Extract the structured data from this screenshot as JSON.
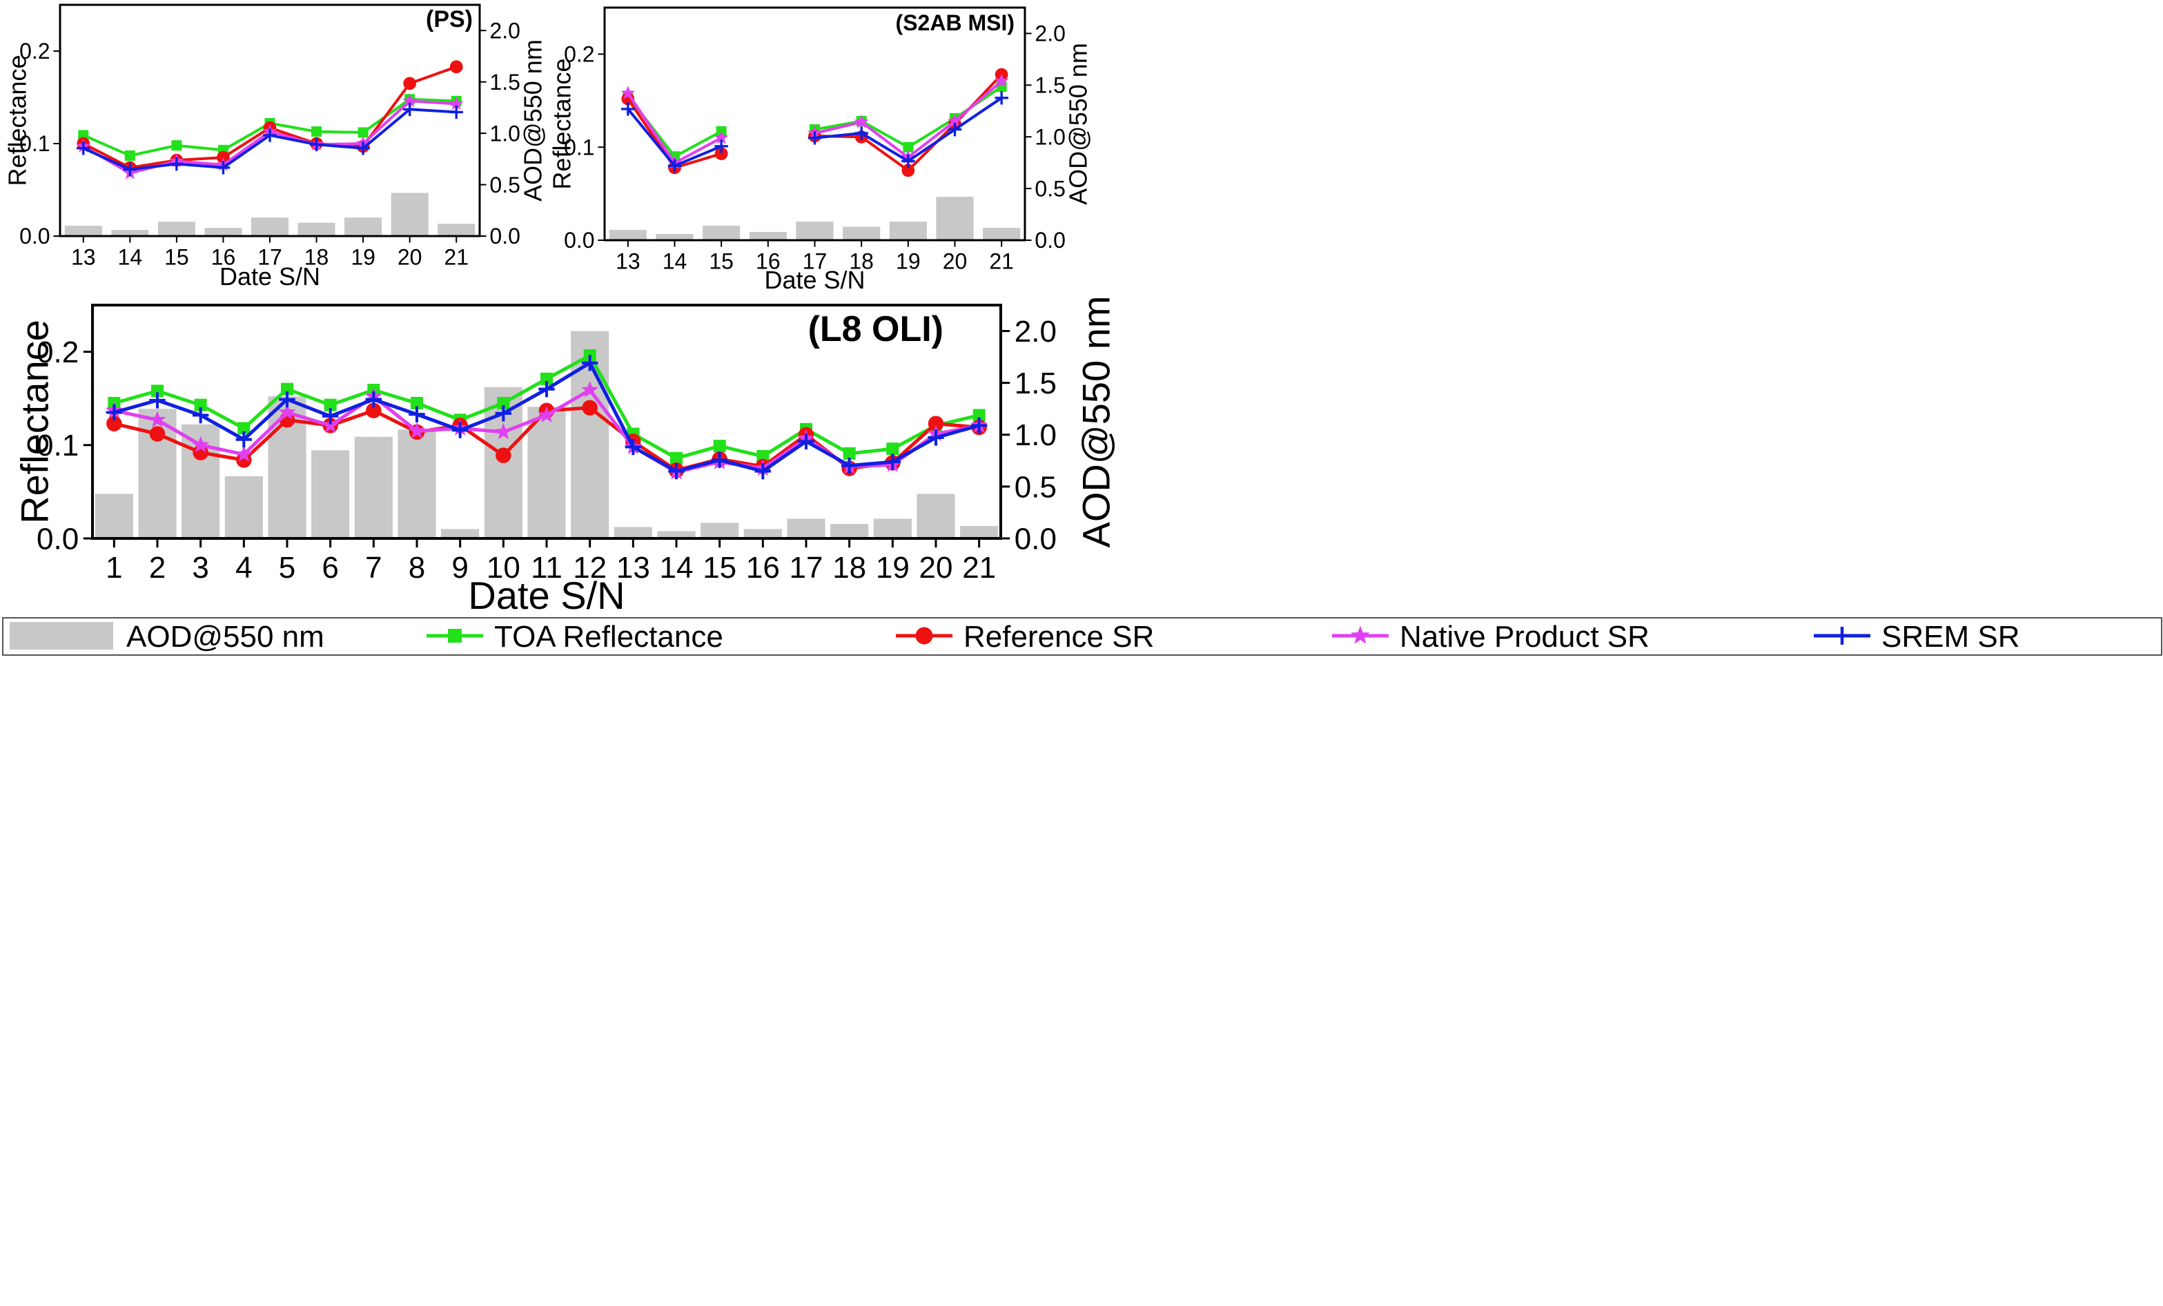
{
  "chart_data": [
    {
      "type": "bar+line",
      "title": "(PS)",
      "xlabel": "Date S/N",
      "ylabel": "Reflectance",
      "y2label": "AOD@550 nm",
      "categories": [
        "13",
        "14",
        "15",
        "16",
        "17",
        "18",
        "19",
        "20",
        "21"
      ],
      "ylim": [
        0,
        0.25
      ],
      "y2lim": [
        0,
        2.25
      ],
      "yticks": [
        "0.0",
        "0.1",
        "0.2"
      ],
      "y2ticks": [
        "0.0",
        "0.5",
        "1.0",
        "1.5",
        "2.0"
      ],
      "aod": [
        0.1,
        0.06,
        0.14,
        0.08,
        0.18,
        0.13,
        0.18,
        0.42,
        0.12
      ],
      "series": [
        {
          "name": "TOA Reflectance",
          "values": [
            0.109,
            0.087,
            0.098,
            0.093,
            0.122,
            0.113,
            0.112,
            0.148,
            0.146
          ]
        },
        {
          "name": "Reference SR",
          "values": [
            0.1,
            0.074,
            0.082,
            0.085,
            0.117,
            0.1,
            0.097,
            0.165,
            0.183
          ]
        },
        {
          "name": "Native Product SR",
          "values": [
            0.097,
            0.068,
            0.081,
            0.077,
            0.113,
            0.099,
            0.1,
            0.146,
            0.143
          ]
        },
        {
          "name": "SREM SR",
          "values": [
            0.095,
            0.072,
            0.078,
            0.074,
            0.109,
            0.099,
            0.095,
            0.137,
            0.134
          ]
        }
      ]
    },
    {
      "type": "bar+line",
      "title": "(S2AB MSI)",
      "xlabel": "Date S/N",
      "ylabel": "Reflectance",
      "y2label": "AOD@550 nm",
      "categories": [
        "13",
        "14",
        "15",
        "16",
        "17",
        "18",
        "19",
        "20",
        "21"
      ],
      "ylim": [
        0,
        0.25
      ],
      "y2lim": [
        0,
        2.25
      ],
      "yticks": [
        "0.0",
        "0.1",
        "0.2"
      ],
      "y2ticks": [
        "0.0",
        "0.5",
        "1.0",
        "1.5",
        "2.0"
      ],
      "aod": [
        0.1,
        0.06,
        0.14,
        0.08,
        0.18,
        0.13,
        0.18,
        0.42,
        0.12
      ],
      "series": [
        {
          "name": "TOA Reflectance",
          "values": [
            0.155,
            0.09,
            0.117,
            null,
            0.119,
            0.128,
            0.1,
            0.131,
            0.165
          ]
        },
        {
          "name": "Reference SR",
          "values": [
            0.152,
            0.078,
            0.093,
            null,
            0.112,
            0.111,
            0.075,
            0.125,
            0.178
          ]
        },
        {
          "name": "Native Product SR",
          "values": [
            0.158,
            0.083,
            0.11,
            null,
            0.115,
            0.127,
            0.089,
            0.128,
            0.171
          ]
        },
        {
          "name": "SREM SR",
          "values": [
            0.141,
            0.08,
            0.101,
            null,
            0.11,
            0.115,
            0.085,
            0.119,
            0.153
          ]
        }
      ]
    },
    {
      "type": "bar+line",
      "title": "(L8 OLI)",
      "xlabel": "Date S/N",
      "ylabel": "Reflectance",
      "y2label": "AOD@550 nm",
      "categories": [
        "1",
        "2",
        "3",
        "4",
        "5",
        "6",
        "7",
        "8",
        "9",
        "10",
        "11",
        "12",
        "13",
        "14",
        "15",
        "16",
        "17",
        "18",
        "19",
        "20",
        "21"
      ],
      "ylim": [
        0,
        0.25
      ],
      "y2lim": [
        0,
        2.25
      ],
      "yticks": [
        "0.0",
        "0.1",
        "0.2"
      ],
      "y2ticks": [
        "0.0",
        "0.5",
        "1.0",
        "1.5",
        "2.0"
      ],
      "aod": [
        0.43,
        1.25,
        1.1,
        0.6,
        1.37,
        0.85,
        0.98,
        1.05,
        0.09,
        1.46,
        1.27,
        2.0,
        0.11,
        0.07,
        0.15,
        0.09,
        0.19,
        0.14,
        0.19,
        0.43,
        0.12
      ],
      "series": [
        {
          "name": "TOA Reflectance",
          "values": [
            0.145,
            0.158,
            0.143,
            0.118,
            0.16,
            0.143,
            0.159,
            0.145,
            0.127,
            0.145,
            0.171,
            0.196,
            0.112,
            0.086,
            0.099,
            0.088,
            0.117,
            0.091,
            0.096,
            0.121,
            0.132
          ]
        },
        {
          "name": "Reference SR",
          "values": [
            0.123,
            0.112,
            0.092,
            0.084,
            0.127,
            0.121,
            0.137,
            0.114,
            0.121,
            0.089,
            0.137,
            0.14,
            0.104,
            0.073,
            0.085,
            0.077,
            0.111,
            0.075,
            0.081,
            0.123,
            0.119
          ]
        },
        {
          "name": "Native Product SR",
          "values": [
            0.137,
            0.127,
            0.1,
            0.09,
            0.135,
            0.121,
            0.152,
            0.115,
            0.118,
            0.114,
            0.132,
            0.159,
            0.098,
            0.071,
            0.082,
            0.075,
            0.107,
            0.077,
            0.079,
            0.112,
            0.121
          ]
        },
        {
          "name": "SREM SR",
          "values": [
            0.135,
            0.148,
            0.132,
            0.106,
            0.149,
            0.131,
            0.149,
            0.133,
            0.116,
            0.134,
            0.16,
            0.188,
            0.098,
            0.072,
            0.084,
            0.072,
            0.104,
            0.078,
            0.082,
            0.108,
            0.121
          ]
        }
      ]
    }
  ],
  "legend": {
    "items": [
      {
        "label": "AOD@550 nm",
        "kind": "bar",
        "color": "#c8c8c8"
      },
      {
        "label": "TOA Reflectance",
        "kind": "line",
        "marker": "square",
        "color": "#22e01a"
      },
      {
        "label": "Reference SR",
        "kind": "line",
        "marker": "circle",
        "color": "#ee1111"
      },
      {
        "label": "Native Product SR",
        "kind": "line",
        "marker": "star",
        "color": "#e040f0"
      },
      {
        "label": "SREM SR",
        "kind": "line",
        "marker": "plus",
        "color": "#1020e0"
      }
    ]
  },
  "colors": {
    "bar": "#c8c8c8",
    "toa": "#22e01a",
    "ref": "#ee1111",
    "native": "#e040f0",
    "srem": "#1020e0"
  }
}
